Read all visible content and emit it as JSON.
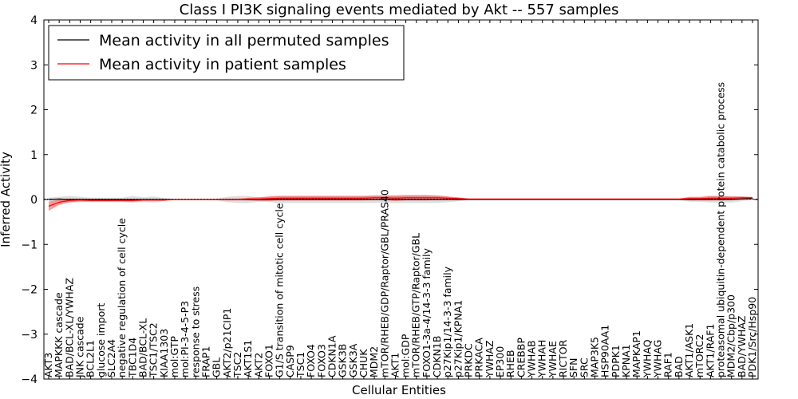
{
  "chart_data": {
    "type": "line",
    "title": "Class I PI3K signaling events mediated by Akt -- 557 samples",
    "xlabel": "Cellular Entities",
    "ylabel": "Inferred Activity",
    "ylim": [
      -4,
      4
    ],
    "yticks": [
      -4,
      -3,
      -2,
      -1,
      0,
      1,
      2,
      3,
      4
    ],
    "ytick_labels": [
      "−4",
      "−3",
      "−2",
      "−1",
      "0",
      "1",
      "2",
      "3",
      "4"
    ],
    "legend": {
      "position": "top-left",
      "entries": [
        {
          "label": "Mean activity in all permuted samples",
          "color": "#000000"
        },
        {
          "label": "Mean activity in patient samples",
          "color": "#ff0000"
        }
      ]
    },
    "categories": [
      "AKT3",
      "MAPKKK cascade",
      "BAD/BCL-XL/YWHAZ",
      "JNK cascade",
      "BCL2L1",
      "glucose import",
      "SLC2A4",
      "negative regulation of cell cycle",
      "TBC1D4",
      "BAD/BCL-XL",
      "TSC1/TSC2",
      "KIAA1303",
      "mol:GTP",
      "mol:PI-3-4-5-P3",
      "response to stress",
      "FRAP1",
      "GBL",
      "AKT2/p21CIP1",
      "TSC2",
      "AKT1S1",
      "AKT2",
      "FOXO1",
      "G1/S transition of mitotic cell cycle",
      "CASP9",
      "TSC1",
      "FOXO4",
      "FOXO3",
      "CDKN1A",
      "GSK3B",
      "GSK3A",
      "CHUK",
      "MDM2",
      "mTOR/RHEB/GDP/Raptor/GBL/PRAS40",
      "AKT1",
      "mol:GDP",
      "mTOR/RHEB/GTP/Raptor/GBL",
      "FOXO1-3a-4/14-3-3 family",
      "CDKN1B",
      "p27Kip1/14-3-3 family",
      "p27Kip1/KPNA1",
      "PRKDC",
      "PRKACA",
      "YWHAZ",
      "EP300",
      "RHEB",
      "CREBBP",
      "YWHAB",
      "YWHAH",
      "YWHAE",
      "RICTOR",
      "SFN",
      "SRC",
      "MAP3K5",
      "HSP90AA1",
      "PDPK1",
      "KPNA1",
      "MAPKAP1",
      "YWHAQ",
      "YWHAG",
      "RAF1",
      "BAD",
      "AKT1/ASK1",
      "mTORC2",
      "AKT1/RAF1",
      "proteasomal ubiquitin-dependent protein catabolic process",
      "MDM2/Cbp/p300",
      "BAD/YWHAZ",
      "PDK1/Src/Hsp90"
    ],
    "series": [
      {
        "name": "Mean activity in all permuted samples",
        "color": "#000000",
        "values": [
          0.0,
          0.01,
          0.0,
          0.0,
          0.0,
          0.0,
          0.0,
          0.0,
          0.0,
          0.0,
          0.0,
          0.0,
          0.0,
          0.0,
          0.0,
          0.0,
          0.0,
          0.0,
          0.0,
          0.0,
          0.0,
          0.0,
          0.0,
          0.0,
          0.0,
          0.0,
          0.0,
          0.0,
          0.0,
          0.0,
          0.0,
          0.0,
          0.0,
          0.0,
          0.0,
          0.0,
          0.0,
          0.0,
          0.0,
          0.0,
          0.0,
          0.0,
          0.0,
          0.0,
          0.0,
          0.0,
          0.0,
          0.0,
          0.0,
          0.0,
          0.0,
          0.0,
          0.0,
          0.0,
          0.0,
          0.0,
          0.0,
          0.0,
          0.0,
          0.0,
          0.0,
          0.0,
          0.0,
          0.0,
          0.0,
          0.0,
          0.01,
          0.02
        ],
        "band": [
          0.04,
          0.05,
          0.08,
          0.06,
          0.04,
          0.04,
          0.04,
          0.04,
          0.08,
          0.05,
          0.07,
          0.03,
          0.01,
          0.01,
          0.01,
          0.01,
          0.02,
          0.06,
          0.08,
          0.08,
          0.05,
          0.06,
          0.08,
          0.08,
          0.08,
          0.08,
          0.08,
          0.08,
          0.08,
          0.08,
          0.08,
          0.08,
          0.08,
          0.08,
          0.08,
          0.08,
          0.08,
          0.08,
          0.06,
          0.04,
          0.01,
          0.01,
          0.01,
          0.01,
          0.01,
          0.01,
          0.01,
          0.01,
          0.01,
          0.01,
          0.01,
          0.01,
          0.01,
          0.01,
          0.01,
          0.01,
          0.01,
          0.01,
          0.01,
          0.01,
          0.01,
          0.05,
          0.05,
          0.07,
          0.07,
          0.07,
          0.05,
          0.03
        ]
      },
      {
        "name": "Mean activity in patient samples",
        "color": "#ff0000",
        "values": [
          -0.15,
          -0.06,
          -0.02,
          -0.01,
          -0.02,
          -0.02,
          -0.02,
          -0.02,
          -0.02,
          -0.01,
          -0.01,
          -0.01,
          0.0,
          0.0,
          0.0,
          0.0,
          0.0,
          0.0,
          0.0,
          0.01,
          0.01,
          0.02,
          0.03,
          0.03,
          0.03,
          0.03,
          0.03,
          0.03,
          0.03,
          0.03,
          0.03,
          0.04,
          0.04,
          0.03,
          0.04,
          0.04,
          0.04,
          0.04,
          0.03,
          0.02,
          0.01,
          0.01,
          0.01,
          0.01,
          0.01,
          0.01,
          0.01,
          0.01,
          0.01,
          0.01,
          0.01,
          0.01,
          0.01,
          0.01,
          0.01,
          0.01,
          0.01,
          0.01,
          0.01,
          0.01,
          0.01,
          0.02,
          0.02,
          0.03,
          0.03,
          0.03,
          0.04,
          0.04
        ],
        "band": [
          0.1,
          0.06,
          0.04,
          0.03,
          0.03,
          0.03,
          0.03,
          0.03,
          0.03,
          0.02,
          0.02,
          0.02,
          0.01,
          0.01,
          0.01,
          0.01,
          0.01,
          0.02,
          0.02,
          0.03,
          0.04,
          0.05,
          0.05,
          0.05,
          0.05,
          0.05,
          0.05,
          0.05,
          0.05,
          0.05,
          0.05,
          0.05,
          0.05,
          0.06,
          0.06,
          0.06,
          0.06,
          0.05,
          0.04,
          0.03,
          0.01,
          0.01,
          0.01,
          0.01,
          0.01,
          0.01,
          0.01,
          0.01,
          0.01,
          0.01,
          0.01,
          0.01,
          0.01,
          0.01,
          0.01,
          0.01,
          0.01,
          0.01,
          0.01,
          0.01,
          0.01,
          0.04,
          0.04,
          0.05,
          0.05,
          0.04,
          0.03,
          0.02
        ]
      }
    ]
  }
}
